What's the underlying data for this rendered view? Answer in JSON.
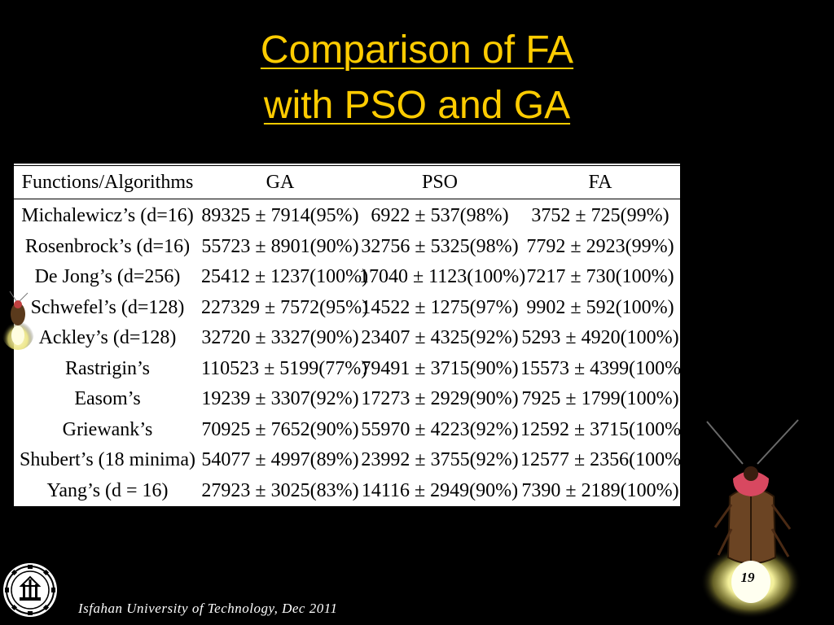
{
  "slide": {
    "title_line1": "Comparison of FA",
    "title_line2": " with PSO and GA",
    "page_number": "19",
    "footer": "Isfahan University of Technology, Dec 2011",
    "colors": {
      "background": "#000000",
      "title": "#ffcc00",
      "table_bg": "#ffffff"
    }
  },
  "table": {
    "headers": [
      "Functions/Algorithms",
      "GA",
      "PSO",
      "FA"
    ],
    "rows": [
      [
        "Michalewicz’s (d=16)",
        "89325 ± 7914(95%)",
        "6922 ± 537(98%)",
        "3752 ± 725(99%)"
      ],
      [
        "Rosenbrock’s (d=16)",
        "55723 ± 8901(90%)",
        "32756 ± 5325(98%)",
        "7792 ± 2923(99%)"
      ],
      [
        "De Jong’s (d=256)",
        "25412 ± 1237(100%)",
        "17040 ± 1123(100%)",
        "7217 ± 730(100%)"
      ],
      [
        "Schwefel’s (d=128)",
        "227329 ± 7572(95%)",
        "14522 ± 1275(97%)",
        "9902 ± 592(100%)"
      ],
      [
        "Ackley’s (d=128)",
        "32720 ± 3327(90%)",
        "23407 ± 4325(92%)",
        "5293 ± 4920(100%)"
      ],
      [
        "Rastrigin’s",
        "110523 ± 5199(77%)",
        "79491 ± 3715(90%)",
        "15573 ± 4399(100%)"
      ],
      [
        "Easom’s",
        "19239 ± 3307(92%)",
        "17273 ± 2929(90%)",
        "7925 ± 1799(100%)"
      ],
      [
        "Griewank’s",
        "70925 ± 7652(90%)",
        "55970 ± 4223(92%)",
        "12592 ± 3715(100%)"
      ],
      [
        "Shubert’s (18 minima)",
        "54077 ± 4997(89%)",
        "23992 ± 3755(92%)",
        "12577 ± 2356(100%)"
      ],
      [
        "Yang’s (d = 16)",
        "27923 ± 3025(83%)",
        "14116 ± 2949(90%)",
        "7390 ± 2189(100%)"
      ]
    ]
  },
  "icons": [
    "firefly-icon",
    "university-logo-icon"
  ]
}
